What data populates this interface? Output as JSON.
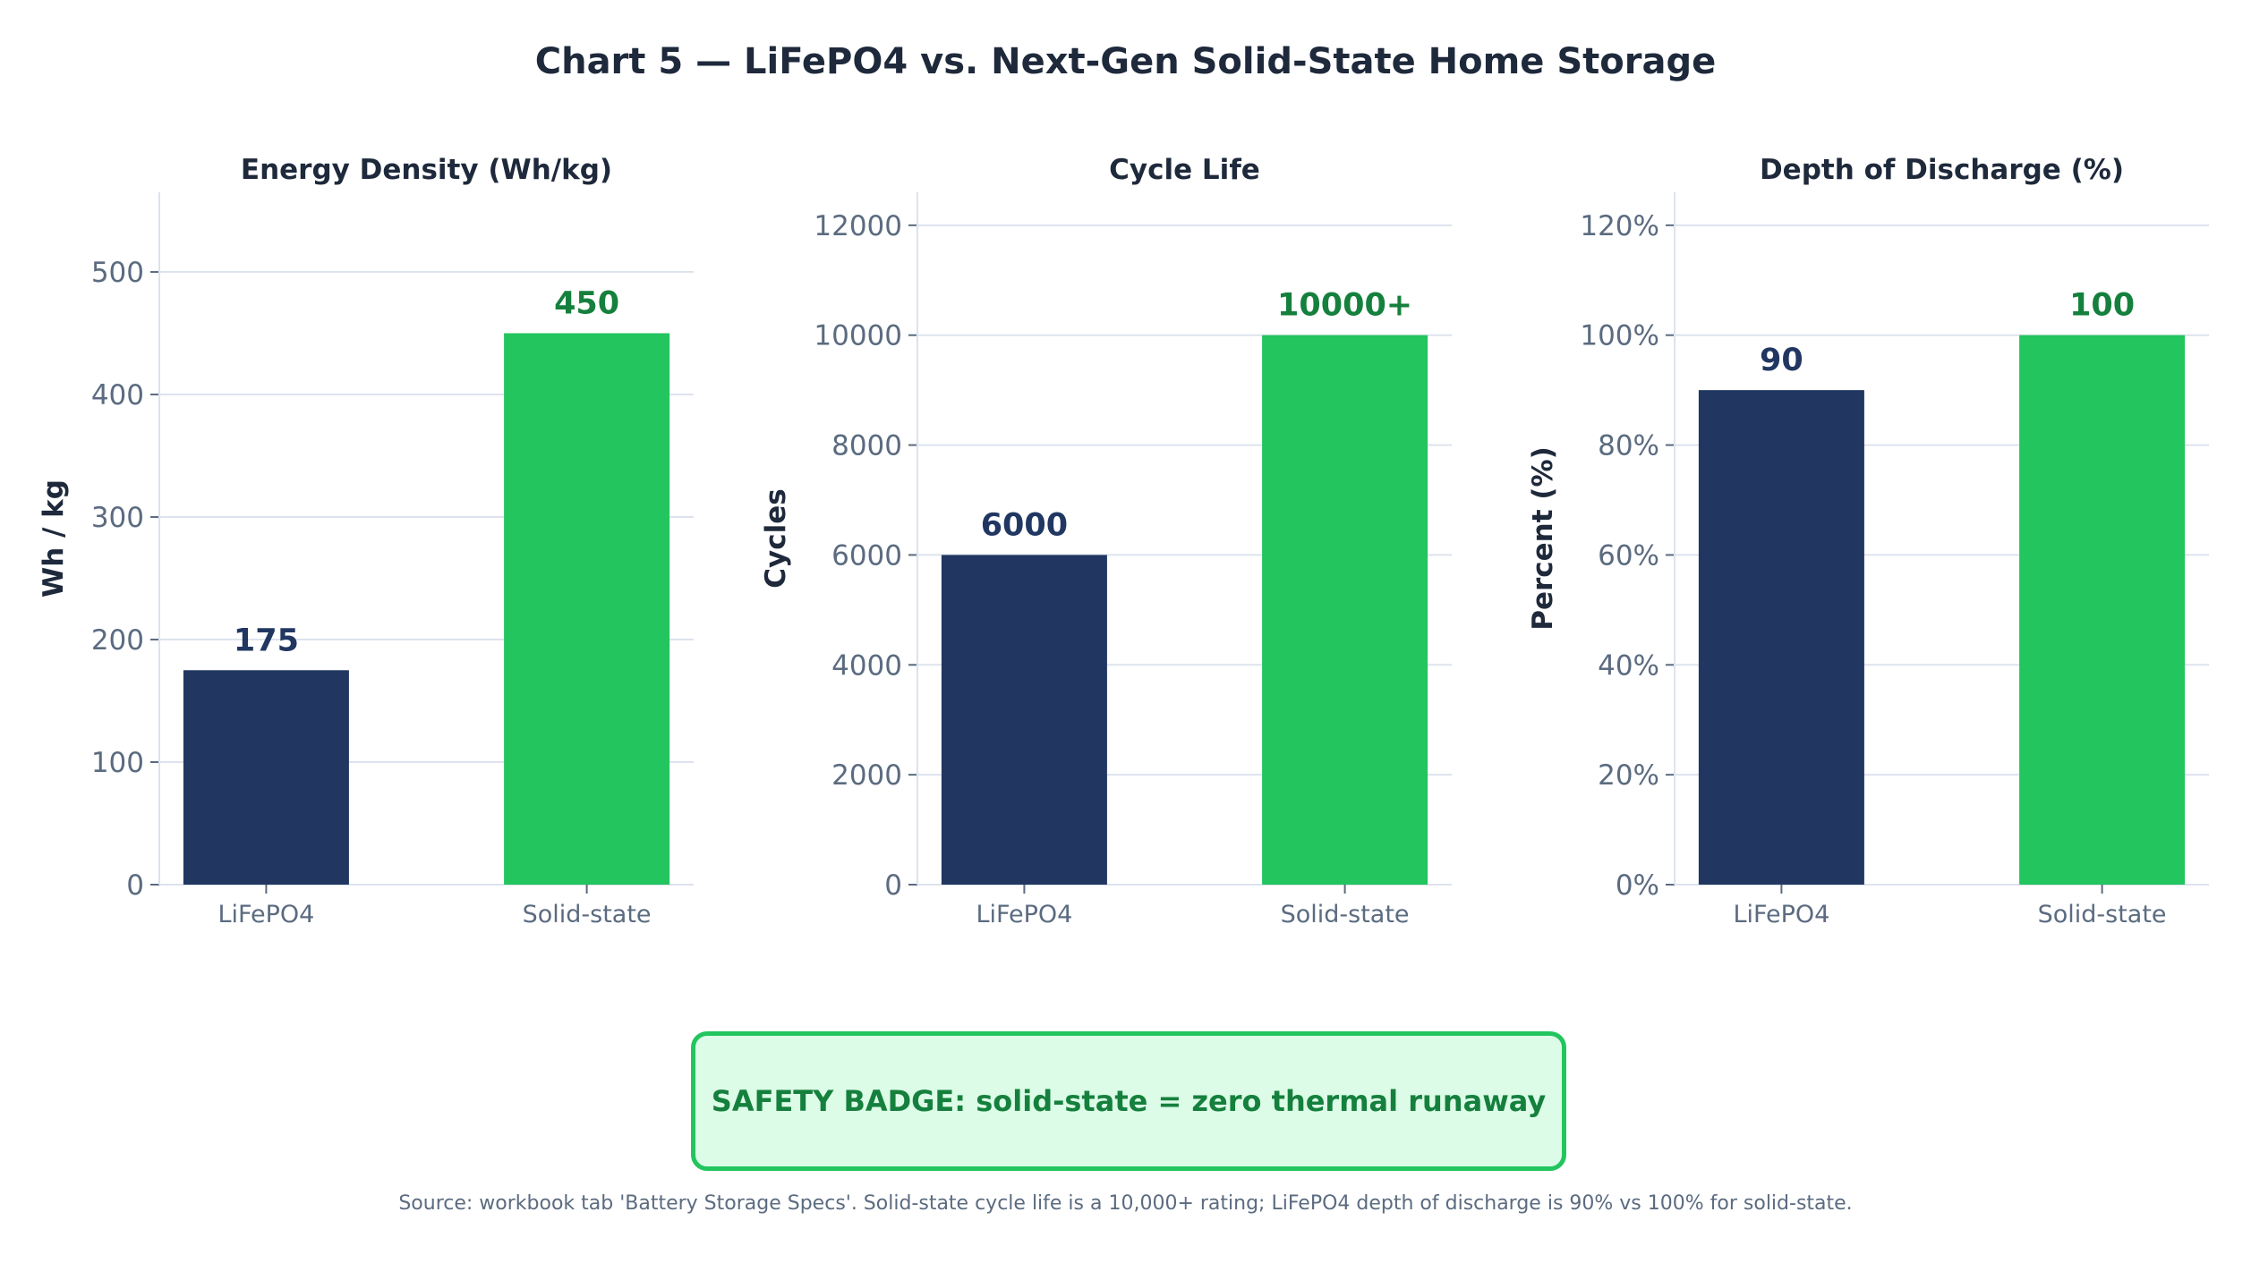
{
  "title": "Chart 5 — LiFePO4 vs. Next-Gen Solid-State Home Storage",
  "colors": {
    "lifepo4_bar": "#213762",
    "solid_state_bar": "#22c55e",
    "lifepo4_label": "#213762",
    "solid_state_label": "#15803d",
    "axis_text": "#5b6b80",
    "grid": "#dde3ee",
    "title_text": "#1e293b"
  },
  "chart_data": [
    {
      "type": "bar",
      "title": "Energy Density (Wh/kg)",
      "ylabel": "Wh / kg",
      "xlabel": "",
      "categories": [
        "LiFePO4",
        "Solid-state"
      ],
      "values": [
        175,
        450
      ],
      "value_labels": [
        "175",
        "450"
      ],
      "ylim": [
        0,
        565
      ],
      "yticks": [
        0,
        100,
        200,
        300,
        400,
        500
      ],
      "ytick_labels": [
        "0",
        "100",
        "200",
        "300",
        "400",
        "500"
      ],
      "grid": true
    },
    {
      "type": "bar",
      "title": "Cycle Life",
      "ylabel": "Cycles",
      "xlabel": "",
      "categories": [
        "LiFePO4",
        "Solid-state"
      ],
      "values": [
        6000,
        10000
      ],
      "value_labels": [
        "6000",
        "10000+"
      ],
      "ylim": [
        0,
        12600
      ],
      "yticks": [
        0,
        2000,
        4000,
        6000,
        8000,
        10000,
        12000
      ],
      "ytick_labels": [
        "0",
        "2000",
        "4000",
        "6000",
        "8000",
        "10000",
        "12000"
      ],
      "grid": true
    },
    {
      "type": "bar",
      "title": "Depth of Discharge (%)",
      "ylabel": "Percent (%)",
      "xlabel": "",
      "categories": [
        "LiFePO4",
        "Solid-state"
      ],
      "values": [
        90,
        100
      ],
      "value_labels": [
        "90",
        "100"
      ],
      "ylim": [
        0,
        126
      ],
      "yticks": [
        0,
        20,
        40,
        60,
        80,
        100,
        120
      ],
      "ytick_labels": [
        "0%",
        "20%",
        "40%",
        "60%",
        "80%",
        "100%",
        "120%"
      ],
      "grid": true
    }
  ],
  "badge": {
    "text": "SAFETY BADGE: solid-state = zero thermal runaway"
  },
  "source_note": "Source: workbook tab 'Battery Storage Specs'. Solid-state cycle life is a 10,000+ rating; LiFePO4 depth of discharge is 90% vs 100% for solid-state."
}
